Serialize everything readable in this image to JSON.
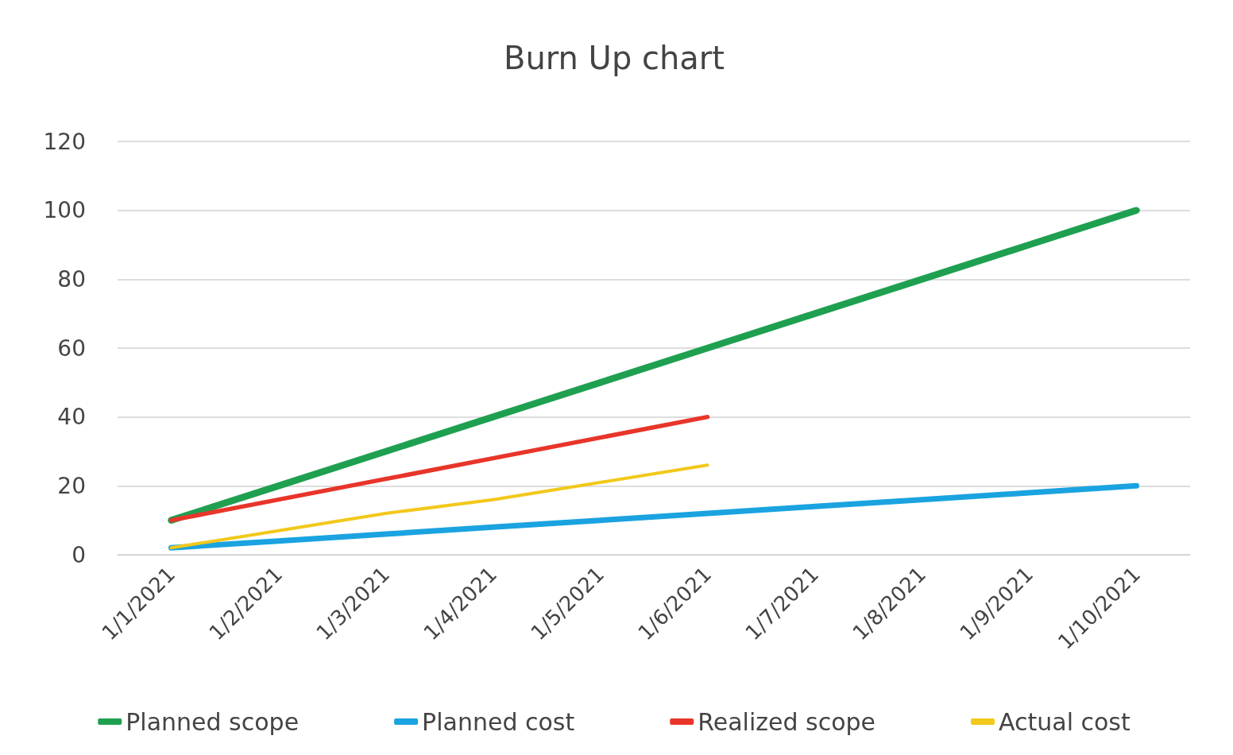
{
  "chart_data": {
    "type": "line",
    "title": "Burn Up chart",
    "categories": [
      "1/1/2021",
      "1/2/2021",
      "1/3/2021",
      "1/4/2021",
      "1/5/2021",
      "1/6/2021",
      "1/7/2021",
      "1/8/2021",
      "1/9/2021",
      "1/10/2021"
    ],
    "series": [
      {
        "name": "Planned scope",
        "color": "#1fa050",
        "values": [
          10,
          20,
          30,
          40,
          50,
          60,
          70,
          80,
          90,
          100
        ]
      },
      {
        "name": "Planned cost",
        "color": "#1aa3e0",
        "values": [
          2,
          4,
          6,
          8,
          10,
          12,
          14,
          16,
          18,
          20
        ]
      },
      {
        "name": "Realized scope",
        "color": "#e8352a",
        "values": [
          10,
          16,
          22,
          28,
          34,
          40,
          null,
          null,
          null,
          null
        ]
      },
      {
        "name": "Actual cost",
        "color": "#f2c81a",
        "values": [
          2,
          7,
          12,
          16,
          21,
          26,
          null,
          null,
          null,
          null
        ]
      }
    ],
    "ylim": [
      0,
      120
    ],
    "yticks": [
      0,
      20,
      40,
      60,
      80,
      100,
      120
    ],
    "grid": "y",
    "legend": "bottom",
    "marker": "none",
    "line_style": "solid"
  }
}
